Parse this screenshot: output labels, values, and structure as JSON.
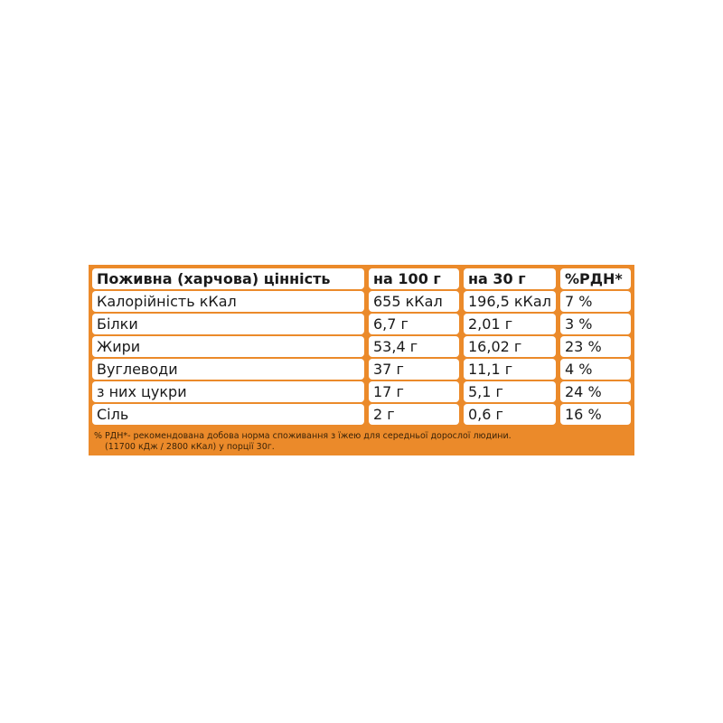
{
  "accent_color": "#eb8a2a",
  "table": {
    "headers": [
      "Поживна (харчова) цінність",
      "на 100 г",
      "на 30 г",
      "%РДН*"
    ],
    "rows": [
      [
        "Калорійність кКал",
        "655 кКал",
        "196,5 кКал",
        "7 %"
      ],
      [
        "Білки",
        "6,7 г",
        "2,01 г",
        "3 %"
      ],
      [
        "Жири",
        "53,4 г",
        "16,02 г",
        "23 %"
      ],
      [
        "Вуглеводи",
        "37 г",
        "11,1 г",
        "4 %"
      ],
      [
        "з них цукри",
        "17 г",
        "5,1 г",
        "24 %"
      ],
      [
        "Сіль",
        "2 г",
        "0,6 г",
        "16 %"
      ]
    ]
  },
  "footnote": {
    "line1": "% РДН*- рекомендована добова норма споживання з їжею для середньої дорослої людини.",
    "line2": "(11700  кДж / 2800 кКал) у порції 30г."
  }
}
